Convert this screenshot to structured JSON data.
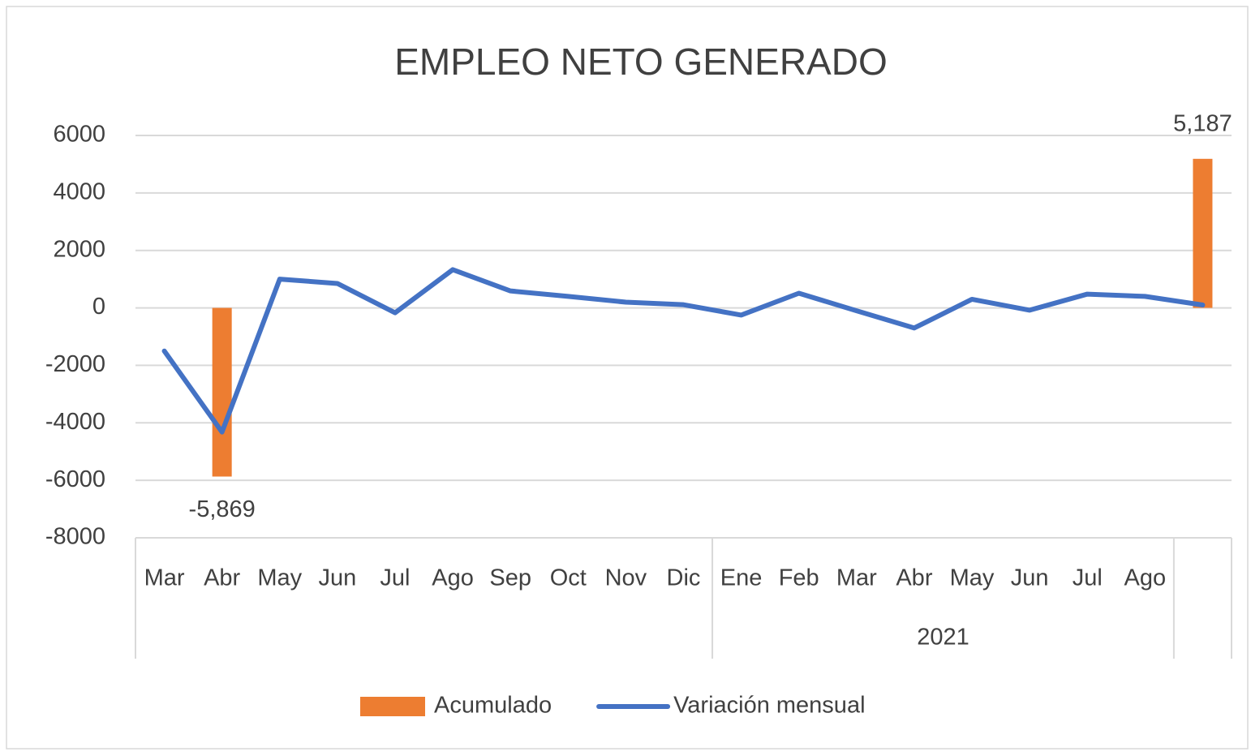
{
  "chart_data": {
    "type": "bar-line",
    "title": "EMPLEO NETO GENERADO",
    "categories": [
      "Mar",
      "Abr",
      "May",
      "Jun",
      "Jul",
      "Ago",
      "Sep",
      "Oct",
      "Nov",
      "Dic",
      "Ene",
      "Feb",
      "Mar",
      "Abr",
      "May",
      "Jun",
      "Jul",
      "Ago",
      null
    ],
    "groups": [
      {
        "label": null,
        "start": 0,
        "end": 9
      },
      {
        "label": "2021",
        "start": 10,
        "end": 17
      },
      {
        "label": null,
        "start": 18,
        "end": 18
      }
    ],
    "series": [
      {
        "name": "Acumulado",
        "type": "bar",
        "color": "#ED7D31",
        "values": [
          null,
          -5869,
          null,
          null,
          null,
          null,
          null,
          null,
          null,
          null,
          null,
          null,
          null,
          null,
          null,
          null,
          null,
          null,
          5187
        ],
        "value_labels": [
          null,
          "-5,869",
          null,
          null,
          null,
          null,
          null,
          null,
          null,
          null,
          null,
          null,
          null,
          null,
          null,
          null,
          null,
          null,
          "5,187"
        ]
      },
      {
        "name": "Variación mensual",
        "type": "line",
        "color": "#4472C4",
        "values": [
          -1500,
          -4320,
          1000,
          850,
          -170,
          1330,
          590,
          400,
          200,
          110,
          -250,
          510,
          -100,
          -700,
          300,
          -80,
          480,
          400,
          100
        ]
      }
    ],
    "ylim": [
      -8000,
      6000
    ],
    "yticks": [
      -8000,
      -6000,
      -4000,
      -2000,
      0,
      2000,
      4000,
      6000
    ],
    "grid": true,
    "legend": "bottom"
  }
}
